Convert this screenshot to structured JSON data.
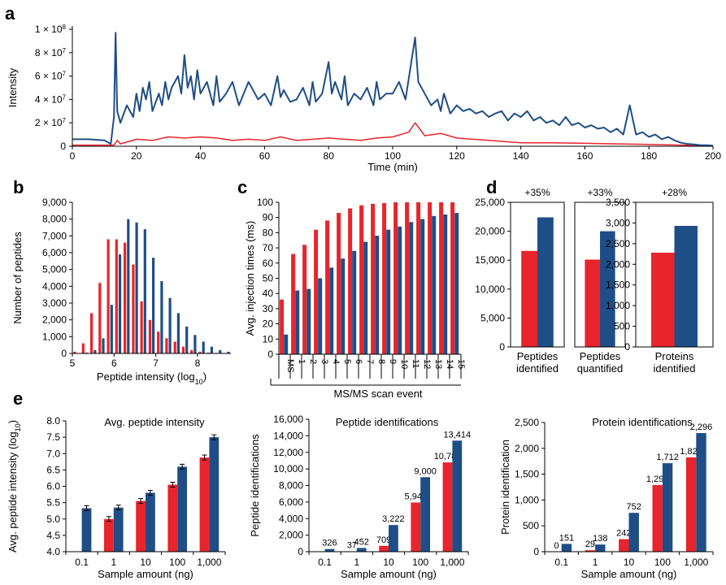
{
  "colors": {
    "red": "#e8242c",
    "blue": "#1f4e86",
    "axis": "#000000"
  },
  "panel_labels": [
    "a",
    "b",
    "c",
    "d",
    "e"
  ],
  "chart_data": [
    {
      "id": "a",
      "type": "line",
      "ylabel": "Intensity",
      "xlabel": "Time (min)",
      "xlim": [
        0,
        200
      ],
      "ylim": [
        0,
        100000000
      ],
      "xticks": [
        0,
        20,
        40,
        60,
        80,
        100,
        120,
        140,
        160,
        180,
        200
      ],
      "xtick_labels": [
        "0",
        "20",
        "40",
        "60",
        "80",
        "100",
        "120",
        "140",
        "160",
        "180",
        "200"
      ],
      "yticks": [
        0,
        20000000,
        40000000,
        60000000,
        80000000,
        100000000
      ],
      "ytick_labels": [
        {
          "base": "0",
          "exp": ""
        },
        {
          "base": "2 × 10",
          "exp": "7"
        },
        {
          "base": "4 × 10",
          "exp": "7"
        },
        {
          "base": "6 × 10",
          "exp": "7"
        },
        {
          "base": "8 × 10",
          "exp": "7"
        },
        {
          "base": "1 × 10",
          "exp": "8"
        }
      ],
      "series": [
        {
          "color": "blue",
          "x": [
            0,
            5,
            10,
            12,
            13,
            13.5,
            14,
            15,
            17,
            19,
            20,
            21,
            22,
            23,
            24,
            25,
            27,
            28,
            29,
            30,
            31,
            33,
            34,
            35,
            36,
            37,
            38,
            39,
            40,
            42,
            44,
            45,
            46,
            48,
            50,
            52,
            55,
            58,
            60,
            62,
            64,
            65,
            66,
            68,
            70,
            72,
            74,
            75,
            76,
            78,
            80,
            81,
            82,
            84,
            85,
            86,
            88,
            90,
            92,
            94,
            95,
            96,
            98,
            100,
            102,
            104,
            106,
            107,
            108,
            110,
            112,
            114,
            115,
            116,
            118,
            120,
            122,
            124,
            126,
            128,
            130,
            132,
            134,
            136,
            138,
            140,
            142,
            144,
            146,
            148,
            150,
            152,
            154,
            156,
            158,
            160,
            162,
            164,
            166,
            168,
            170,
            172,
            174,
            176,
            178,
            180,
            182,
            184,
            186,
            188,
            190,
            192,
            194,
            196,
            198,
            200
          ],
          "y": [
            6000000,
            6000000,
            5000000,
            2000000,
            25000000,
            97000000,
            30000000,
            20000000,
            35000000,
            25000000,
            45000000,
            30000000,
            50000000,
            40000000,
            55000000,
            30000000,
            45000000,
            35000000,
            55000000,
            40000000,
            50000000,
            60000000,
            45000000,
            78000000,
            50000000,
            60000000,
            40000000,
            65000000,
            45000000,
            55000000,
            35000000,
            60000000,
            38000000,
            45000000,
            55000000,
            35000000,
            55000000,
            40000000,
            45000000,
            35000000,
            60000000,
            42000000,
            48000000,
            38000000,
            40000000,
            50000000,
            35000000,
            55000000,
            38000000,
            45000000,
            72000000,
            45000000,
            55000000,
            40000000,
            60000000,
            35000000,
            45000000,
            40000000,
            50000000,
            35000000,
            55000000,
            40000000,
            45000000,
            45000000,
            55000000,
            40000000,
            75000000,
            93000000,
            55000000,
            45000000,
            35000000,
            40000000,
            30000000,
            45000000,
            28000000,
            35000000,
            30000000,
            32000000,
            28000000,
            30000000,
            25000000,
            28000000,
            30000000,
            22000000,
            28000000,
            25000000,
            30000000,
            22000000,
            25000000,
            20000000,
            22000000,
            18000000,
            25000000,
            18000000,
            20000000,
            16000000,
            18000000,
            15000000,
            16000000,
            12000000,
            15000000,
            10000000,
            35000000,
            10000000,
            12000000,
            8000000,
            10000000,
            6000000,
            8000000,
            5000000,
            3000000,
            2000000,
            1500000,
            1000000,
            800000,
            500000
          ]
        },
        {
          "color": "red",
          "x": [
            0,
            5,
            10,
            13,
            14,
            15,
            20,
            25,
            30,
            35,
            40,
            45,
            50,
            55,
            60,
            65,
            70,
            75,
            80,
            85,
            90,
            95,
            100,
            105,
            107,
            110,
            115,
            120,
            125,
            130,
            135,
            140,
            145,
            150,
            160,
            170,
            180,
            190,
            200
          ],
          "y": [
            1000000,
            1000000,
            1000000,
            1000000,
            5000000,
            2000000,
            6000000,
            5000000,
            8000000,
            7000000,
            8000000,
            7000000,
            5000000,
            6000000,
            5000000,
            8000000,
            5000000,
            6000000,
            7000000,
            6000000,
            5000000,
            7000000,
            8000000,
            12000000,
            20000000,
            9000000,
            11000000,
            7000000,
            6000000,
            5000000,
            4000000,
            3000000,
            3000000,
            3000000,
            2500000,
            2000000,
            1500000,
            1000000,
            500000
          ]
        }
      ]
    },
    {
      "id": "b",
      "type": "bar",
      "ylabel": "Number of peptides",
      "xlabel": "Peptide intensity (log",
      "xlabel_sub": "10",
      "xlabel_suffix": ")",
      "xlim": [
        5,
        8.8
      ],
      "ylim": [
        0,
        9000
      ],
      "xticks": [
        5,
        6,
        7,
        8
      ],
      "xtick_labels": [
        "5",
        "6",
        "7",
        "8"
      ],
      "yticks": [
        0,
        1000,
        2000,
        3000,
        4000,
        5000,
        6000,
        7000,
        8000,
        9000
      ],
      "ytick_labels": [
        "0",
        "1,000",
        "2,000",
        "3,000",
        "4,000",
        "5,000",
        "6,000",
        "7,000",
        "8,000",
        "9,000"
      ],
      "series": [
        {
          "color": "red",
          "x": [
            5.1,
            5.3,
            5.5,
            5.7,
            5.9,
            6.1,
            6.3,
            6.5,
            6.7,
            6.9,
            7.1,
            7.3,
            7.5,
            7.7,
            7.9,
            8.1,
            8.3,
            8.5,
            8.7
          ],
          "values": [
            100,
            600,
            2400,
            4200,
            6800,
            6800,
            6600,
            5300,
            3100,
            2000,
            1300,
            900,
            700,
            400,
            200,
            100,
            50,
            30,
            10
          ]
        },
        {
          "color": "blue",
          "x": [
            5.1,
            5.3,
            5.5,
            5.7,
            5.9,
            6.1,
            6.3,
            6.5,
            6.7,
            6.9,
            7.1,
            7.3,
            7.5,
            7.7,
            7.9,
            8.1,
            8.3,
            8.5,
            8.7
          ],
          "values": [
            20,
            50,
            200,
            900,
            2900,
            5900,
            8000,
            7800,
            7400,
            5700,
            4300,
            3300,
            2400,
            1600,
            1100,
            700,
            400,
            200,
            100
          ]
        }
      ]
    },
    {
      "id": "c",
      "type": "bar",
      "ylabel": "Avg. injection times (ms)",
      "xlabel": "MS/MS scan event",
      "ylim": [
        0,
        100
      ],
      "yticks": [
        0,
        10,
        20,
        30,
        40,
        50,
        60,
        70,
        80,
        90,
        100
      ],
      "ytick_labels": [
        "0",
        "10",
        "20",
        "30",
        "40",
        "50",
        "60",
        "70",
        "80",
        "90",
        "100"
      ],
      "categories": [
        "MS",
        "1",
        "2",
        "3",
        "4",
        "5",
        "6",
        "7",
        "8",
        "9",
        "10",
        "11",
        "12",
        "13",
        "14",
        "15"
      ],
      "series": [
        {
          "color": "red",
          "values": [
            36,
            66,
            72,
            82,
            88,
            93,
            96,
            98,
            99,
            99.5,
            100,
            100,
            100,
            100,
            100,
            100
          ]
        },
        {
          "color": "blue",
          "values": [
            13,
            42,
            43,
            50,
            57,
            63,
            68,
            74,
            78,
            82,
            84,
            87,
            89,
            91,
            92,
            93
          ]
        }
      ]
    },
    {
      "id": "d",
      "type": "bar",
      "subcharts": [
        {
          "label_lines": [
            "Peptides",
            "identified"
          ],
          "annotation": "+35%",
          "ylim": [
            0,
            25000
          ],
          "yticks": [
            0,
            5000,
            10000,
            15000,
            20000,
            25000
          ],
          "ytick_labels": [
            "0",
            "5,000",
            "10,000",
            "15,000",
            "20,000",
            "25,000"
          ],
          "values": [
            16600,
            22400
          ]
        },
        {
          "label_lines": [
            "Peptides",
            "quantified"
          ],
          "annotation": "+33%",
          "ylim": [
            0,
            25000
          ],
          "yticks": [],
          "ytick_labels": [],
          "values": [
            15100,
            20000
          ]
        },
        {
          "label_lines": [
            "Proteins",
            "identified"
          ],
          "annotation": "+28%",
          "ylim": [
            0,
            3500
          ],
          "yticks": [
            0,
            500,
            1000,
            1500,
            2000,
            2500,
            3000,
            3500
          ],
          "ytick_labels": [
            "0",
            "500",
            "1,000",
            "1,500",
            "2,000",
            "2,500",
            "3,000",
            "3,500"
          ],
          "values": [
            2280,
            2930
          ]
        }
      ]
    },
    {
      "id": "e1",
      "type": "bar",
      "title": "Avg. peptide intensity",
      "ylabel": "Avg. peptide intensity (log",
      "ylabel_sub": "10",
      "ylabel_suffix": ")",
      "xlabel": "Sample amount (ng)",
      "categories": [
        "0.1",
        "1",
        "10",
        "100",
        "1,000"
      ],
      "ylim": [
        4.0,
        8.0
      ],
      "yticks": [
        4.0,
        4.5,
        5.0,
        5.5,
        6.0,
        6.5,
        7.0,
        7.5,
        8.0
      ],
      "ytick_labels": [
        "4.0",
        "4.5",
        "5.0",
        "5.5",
        "6.0",
        "6.5",
        "7.0",
        "7.5",
        "8.0"
      ],
      "series": [
        {
          "color": "red",
          "values": [
            4.0,
            5.0,
            5.55,
            6.05,
            6.88
          ]
        },
        {
          "color": "blue",
          "values": [
            5.33,
            5.35,
            5.8,
            6.6,
            7.5
          ]
        }
      ]
    },
    {
      "id": "e2",
      "type": "bar",
      "title": "Peptide identifications",
      "ylabel": "Peptide identifications",
      "xlabel": "Sample amount (ng)",
      "categories": [
        "0.1",
        "1",
        "10",
        "100",
        "1,000"
      ],
      "ylim": [
        0,
        16000
      ],
      "yticks": [
        0,
        2000,
        4000,
        6000,
        8000,
        10000,
        12000,
        14000,
        16000
      ],
      "ytick_labels": [
        "0",
        "2,000",
        "4,000",
        "6,000",
        "8,000",
        "10,000",
        "12,000",
        "14,000",
        "16,000"
      ],
      "series": [
        {
          "color": "red",
          "values": [
            0,
            37,
            709,
            5940,
            10787
          ],
          "labels": [
            "",
            "37",
            "709",
            "5,940",
            "10,787"
          ]
        },
        {
          "color": "blue",
          "values": [
            326,
            452,
            3222,
            9000,
            13414
          ],
          "labels": [
            "326",
            "452",
            "3,222",
            "9,000",
            "13,414"
          ]
        }
      ]
    },
    {
      "id": "e3",
      "type": "bar",
      "title": "Protein identifications",
      "ylabel": "Protein identification",
      "xlabel": "Sample amount (ng)",
      "categories": [
        "0.1",
        "1",
        "10",
        "100",
        "1,000"
      ],
      "ylim": [
        0,
        2500
      ],
      "yticks": [
        0,
        500,
        1000,
        1500,
        2000,
        2500
      ],
      "ytick_labels": [
        "0",
        "500",
        "1,000",
        "1,500",
        "2,000",
        "2,500"
      ],
      "series": [
        {
          "color": "red",
          "values": [
            0,
            29,
            242,
            1291,
            1825
          ],
          "labels": [
            "0",
            "29",
            "242",
            "1,291",
            "1,825"
          ]
        },
        {
          "color": "blue",
          "values": [
            151,
            138,
            752,
            1712,
            2296
          ],
          "labels": [
            "151",
            "138",
            "752",
            "1,712",
            "2,296"
          ]
        }
      ]
    }
  ]
}
